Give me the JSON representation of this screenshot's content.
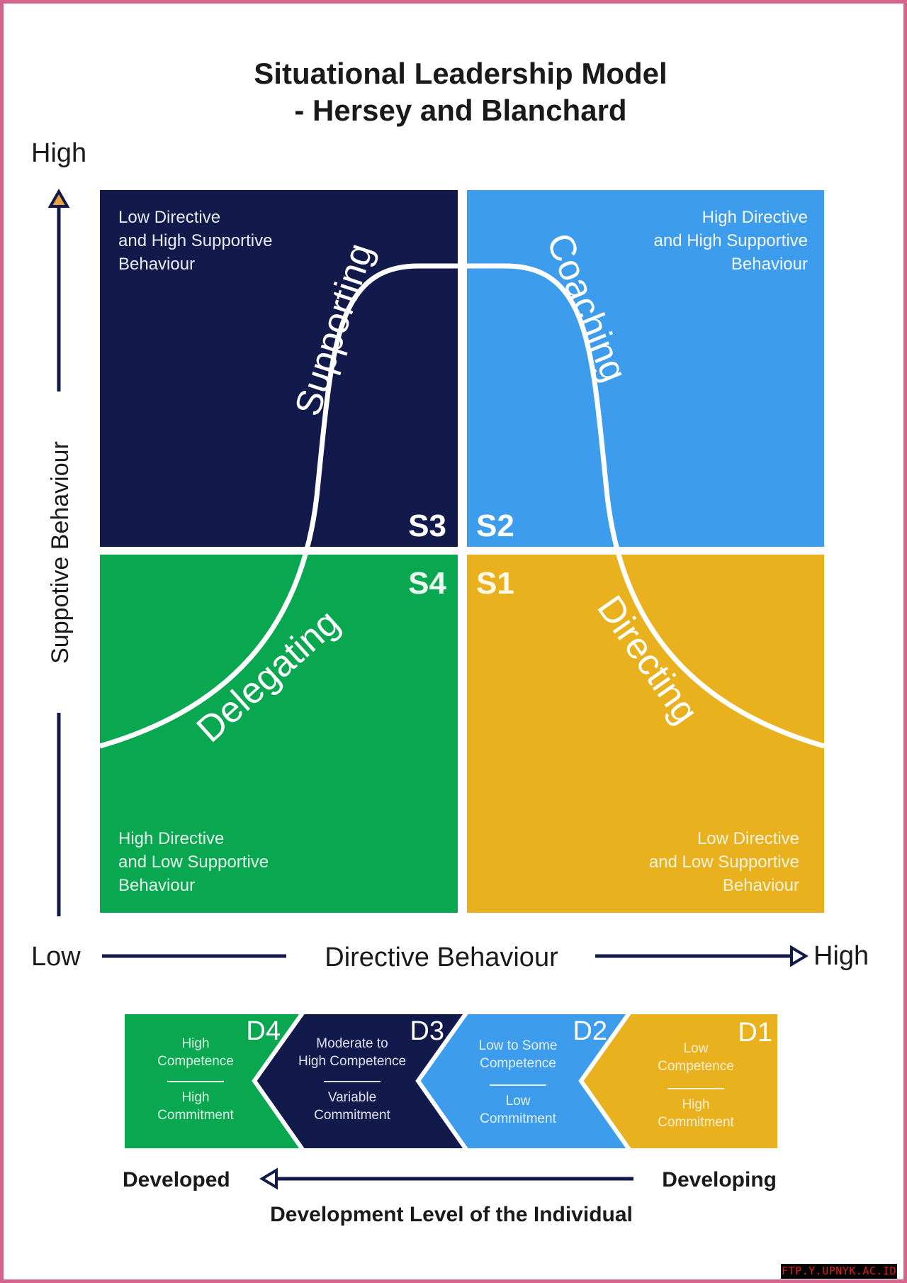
{
  "title": {
    "line1": "Situational Leadership Model",
    "line2": "- Hersey and Blanchard"
  },
  "axes": {
    "y_high": "High",
    "y_label": "Suppotive Behaviour",
    "x_low": "Low",
    "x_label": "Directive Behaviour",
    "x_high": "High"
  },
  "quadrants": {
    "s3": {
      "code": "S3",
      "style": "Supporting",
      "desc": [
        "Low Directive",
        "and High Supportive",
        "Behaviour"
      ],
      "color": "#121a4b"
    },
    "s2": {
      "code": "S2",
      "style": "Coaching",
      "desc": [
        "High Directive",
        "and High Supportive",
        "Behaviour"
      ],
      "color": "#3d9cec"
    },
    "s4": {
      "code": "S4",
      "style": "Delegating",
      "desc": [
        "High Directive",
        "and Low Supportive",
        "Behaviour"
      ],
      "color": "#0aa751"
    },
    "s1": {
      "code": "S1",
      "style": "Directing",
      "desc": [
        "Low Directive",
        "and Low Supportive",
        "Behaviour"
      ],
      "color": "#e8b11d"
    }
  },
  "development": {
    "levels": [
      {
        "code": "D4",
        "competence": [
          "High",
          "Competence"
        ],
        "commitment": [
          "High",
          "Commitment"
        ],
        "color": "#0aa751"
      },
      {
        "code": "D3",
        "competence": [
          "Moderate to",
          "High Competence"
        ],
        "commitment": [
          "Variable",
          "Commitment"
        ],
        "color": "#121a4b"
      },
      {
        "code": "D2",
        "competence": [
          "Low to Some",
          "Competence"
        ],
        "commitment": [
          "Low",
          "Commitment"
        ],
        "color": "#3d9cec"
      },
      {
        "code": "D1",
        "competence": [
          "Low",
          "Competence"
        ],
        "commitment": [
          "High",
          "Commitment"
        ],
        "color": "#e8b11d"
      }
    ],
    "left_label": "Developed",
    "right_label": "Developing",
    "axis_label": "Development Level of the Individual"
  },
  "watermark": "FTP.Y.UPNYK.AC.ID"
}
